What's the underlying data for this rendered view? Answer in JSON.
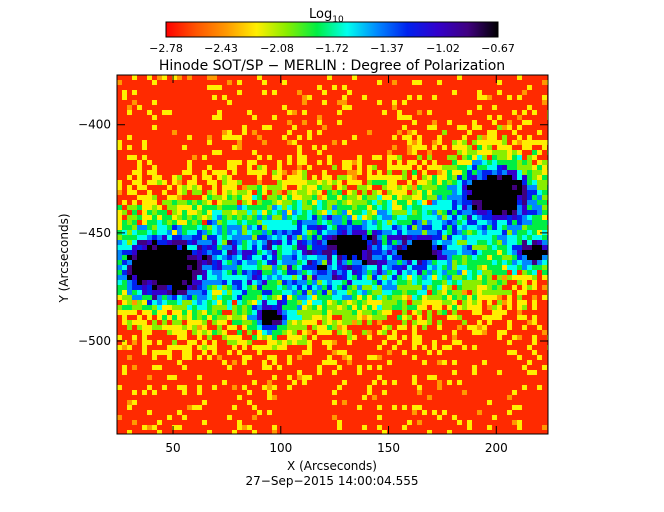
{
  "colorbar": {
    "label_base": "Log",
    "label_sub": "10",
    "ticks": [
      "−2.78",
      "−2.43",
      "−2.08",
      "−1.72",
      "−1.37",
      "−1.02",
      "−0.67"
    ],
    "colors": [
      "#ff0000",
      "#ff5500",
      "#ff9900",
      "#ffee00",
      "#88ee00",
      "#00ee44",
      "#00ffee",
      "#0088ff",
      "#0022ee",
      "#3300cc",
      "#400080",
      "#000000"
    ]
  },
  "chart_data": {
    "type": "heatmap",
    "title": "Hinode SOT/SP − MERLIN : Degree of Polarization",
    "xlabel": "X (Arcseconds)",
    "ylabel": "Y (Arcseconds)",
    "subtitle": "27−Sep−2015 14:00:04.555",
    "xlim": [
      24,
      224
    ],
    "ylim": [
      -543,
      -377
    ],
    "xticks": [
      50,
      100,
      150,
      200
    ],
    "yticks": [
      -400,
      -450,
      -500
    ],
    "value_range_log10": [
      -2.78,
      -0.67
    ],
    "features": [
      {
        "kind": "sunspot",
        "x": 200,
        "y": -432
      },
      {
        "kind": "sunspot",
        "x": 45,
        "y": -466
      },
      {
        "kind": "pore",
        "x": 95,
        "y": -489
      },
      {
        "kind": "pore",
        "x": 132,
        "y": -456
      },
      {
        "kind": "pore",
        "x": 165,
        "y": -458
      },
      {
        "kind": "pore",
        "x": 218,
        "y": -459
      }
    ]
  }
}
